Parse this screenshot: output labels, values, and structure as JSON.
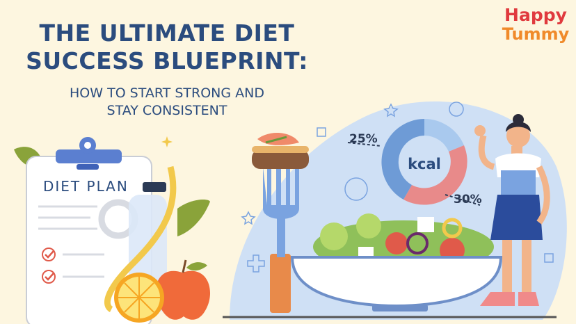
{
  "header": {
    "title_line1": "THE ULTIMATE DIET",
    "title_line2": "SUCCESS BLUEPRINT:",
    "subtitle_line1": "HOW TO START STRONG AND",
    "subtitle_line2": "STAY CONSISTENT"
  },
  "logo": {
    "line1": "Happy",
    "line2": "Tummy"
  },
  "clipboard": {
    "label": "DIET PLAN"
  },
  "donut": {
    "center_label": "kcal",
    "label_left": "25%",
    "label_right": "30%"
  },
  "colors": {
    "background": "#fdf6e0",
    "title": "#2b4c7e",
    "logo_red": "#e03a3e",
    "logo_orange": "#f08a2a",
    "blob": "#cfe0f5"
  }
}
